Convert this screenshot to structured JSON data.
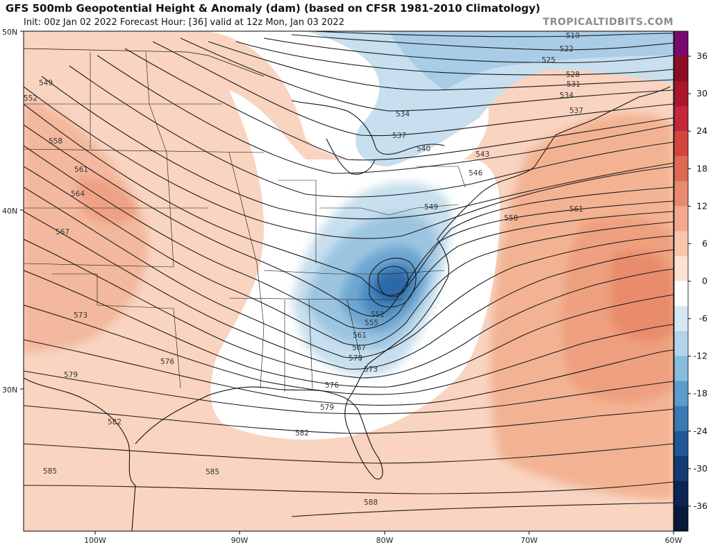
{
  "header": {
    "title": "GFS 500mb Geopotential Height & Anomaly (dam) (based on CFSR 1981-2010 Climatology)",
    "subtitle": "Init: 00z Jan 02 2022   Forecast Hour: [36]   valid at 12z Mon, Jan 03 2022",
    "brand": "TROPICALTIDBITS.COM"
  },
  "map": {
    "lon_range": [
      -105.5,
      -60
    ],
    "lat_range": [
      22,
      50
    ],
    "lat_labels": [
      "50N",
      "40N",
      "30N"
    ],
    "lon_labels": [
      "100W",
      "90W",
      "80W",
      "70W",
      "60W"
    ]
  },
  "colorbar": {
    "ticks": [
      "36",
      "30",
      "24",
      "18",
      "12",
      "6",
      "0",
      "-6",
      "-12",
      "-18",
      "-24",
      "-30",
      "-36"
    ],
    "colors": [
      "#7a0a6e",
      "#8c1023",
      "#a8172c",
      "#c2273a",
      "#d2463e",
      "#de6a52",
      "#e88a6e",
      "#f2a98d",
      "#f7c6ad",
      "#fbe2d3",
      "#ffffff",
      "#d6e8f3",
      "#b1d4ea",
      "#86bcdc",
      "#5b9ccb",
      "#3b79b3",
      "#1f5797",
      "#143b75",
      "#0c2554",
      "#071a3a"
    ]
  },
  "contours": {
    "labels": [
      "519",
      "522",
      "525",
      "528",
      "531",
      "534",
      "537",
      "540",
      "543",
      "546",
      "549",
      "552",
      "555",
      "558",
      "561",
      "564",
      "567",
      "570",
      "573",
      "576",
      "579",
      "582",
      "585",
      "588"
    ]
  }
}
